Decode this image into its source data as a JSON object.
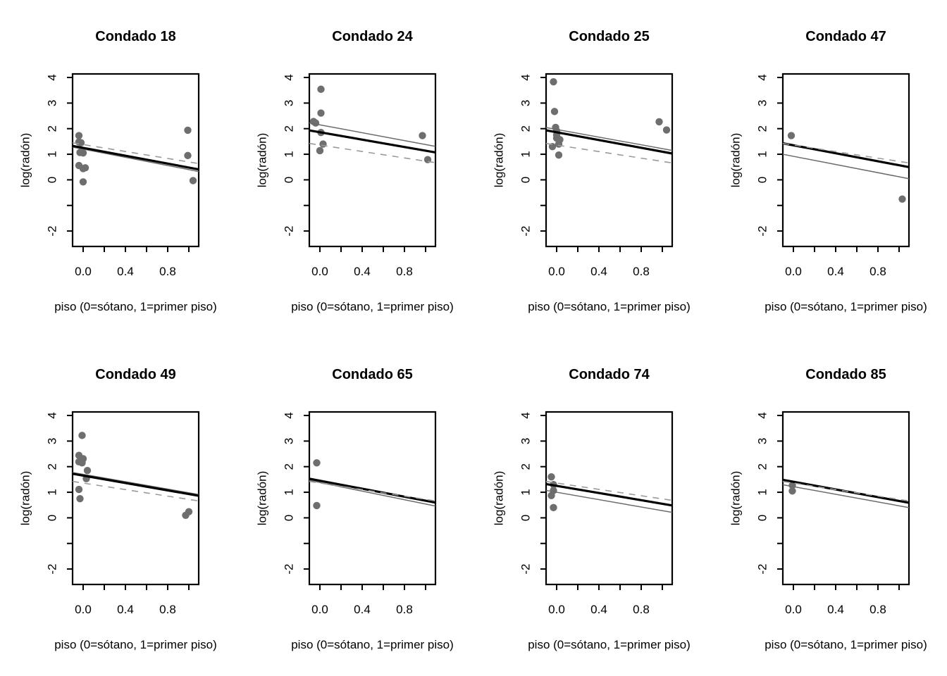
{
  "figure": {
    "background": "#ffffff",
    "point_color": "#6e6e6e",
    "line_colors": {
      "solid_thick_black": "#000000",
      "solid_thin_gray": "#6b6b6b",
      "dashed_gray": "#9a9a9a"
    }
  },
  "axes": {
    "xlabel": "piso (0=sótano, 1=primer piso)",
    "ylabel": "log(radón)",
    "xlim": [
      -0.1,
      1.09
    ],
    "ylim": [
      -2.6,
      4.14
    ],
    "x_ticks": [
      0.0,
      0.2,
      0.4,
      0.6,
      0.8,
      1.0
    ],
    "x_tick_labels": [
      "0.0",
      "",
      "0.4",
      "",
      "0.8",
      ""
    ],
    "y_ticks": [
      4,
      3,
      2,
      1,
      0,
      -1,
      -2
    ],
    "y_tick_labels": [
      "4",
      "3",
      "2",
      "1",
      "0",
      "",
      "-2"
    ],
    "grid": false
  },
  "chart_data": [
    {
      "type": "scatter",
      "title": "Condado 18",
      "xlabel": "piso (0=sótano, 1=primer piso)",
      "ylabel": "log(radón)",
      "points": [
        [
          -0.04,
          1.73
        ],
        [
          -0.04,
          1.48
        ],
        [
          -0.02,
          1.45
        ],
        [
          -0.03,
          1.07
        ],
        [
          0.0,
          1.05
        ],
        [
          -0.04,
          0.56
        ],
        [
          0.02,
          0.47
        ],
        [
          0.0,
          0.44
        ],
        [
          0.0,
          -0.08
        ],
        [
          0.99,
          1.94
        ],
        [
          0.99,
          0.95
        ],
        [
          1.04,
          -0.03
        ]
      ],
      "lines": [
        {
          "style": "solid_thin_gray",
          "y_at_x0": 1.2,
          "y_at_x1": 0.4
        },
        {
          "style": "solid_thick_black",
          "y_at_x0": 1.25,
          "y_at_x1": 0.48
        },
        {
          "style": "dashed_gray",
          "y_at_x0": 1.38,
          "y_at_x1": 0.7
        }
      ]
    },
    {
      "type": "scatter",
      "title": "Condado 24",
      "xlabel": "piso (0=sótano, 1=primer piso)",
      "ylabel": "log(radón)",
      "points": [
        [
          0.01,
          3.54
        ],
        [
          0.01,
          2.61
        ],
        [
          -0.06,
          2.28
        ],
        [
          -0.04,
          2.22
        ],
        [
          0.01,
          1.85
        ],
        [
          0.03,
          1.4
        ],
        [
          0.0,
          1.14
        ],
        [
          0.97,
          1.73
        ],
        [
          1.02,
          0.79
        ]
      ],
      "lines": [
        {
          "style": "solid_thin_gray",
          "y_at_x0": 2.15,
          "y_at_x1": 1.38
        },
        {
          "style": "solid_thick_black",
          "y_at_x0": 1.86,
          "y_at_x1": 1.14
        },
        {
          "style": "dashed_gray",
          "y_at_x0": 1.36,
          "y_at_x1": 0.73
        }
      ]
    },
    {
      "type": "scatter",
      "title": "Condado 25",
      "xlabel": "piso (0=sótano, 1=primer piso)",
      "ylabel": "log(radón)",
      "points": [
        [
          -0.03,
          3.83
        ],
        [
          -0.02,
          2.67
        ],
        [
          -0.01,
          2.05
        ],
        [
          0.0,
          1.91
        ],
        [
          0.0,
          1.75
        ],
        [
          0.0,
          1.63
        ],
        [
          0.03,
          1.57
        ],
        [
          0.02,
          1.4
        ],
        [
          -0.04,
          1.3
        ],
        [
          0.02,
          0.97
        ],
        [
          0.97,
          2.27
        ],
        [
          1.04,
          1.95
        ]
      ],
      "lines": [
        {
          "style": "solid_thin_gray",
          "y_at_x0": 1.97,
          "y_at_x1": 1.22
        },
        {
          "style": "solid_thick_black",
          "y_at_x0": 1.86,
          "y_at_x1": 1.1
        },
        {
          "style": "dashed_gray",
          "y_at_x0": 1.36,
          "y_at_x1": 0.72
        }
      ]
    },
    {
      "type": "scatter",
      "title": "Condado 47",
      "xlabel": "piso (0=sótano, 1=primer piso)",
      "ylabel": "log(radón)",
      "points": [
        [
          -0.02,
          1.73
        ],
        [
          1.03,
          -0.75
        ]
      ],
      "lines": [
        {
          "style": "solid_thin_gray",
          "y_at_x0": 0.92,
          "y_at_x1": 0.12
        },
        {
          "style": "solid_thick_black",
          "y_at_x0": 1.35,
          "y_at_x1": 0.57
        },
        {
          "style": "dashed_gray",
          "y_at_x0": 1.36,
          "y_at_x1": 0.72
        }
      ]
    },
    {
      "type": "scatter",
      "title": "Condado 49",
      "xlabel": "piso (0=sótano, 1=primer piso)",
      "ylabel": "log(radón)",
      "points": [
        [
          -0.01,
          3.22
        ],
        [
          -0.04,
          2.44
        ],
        [
          0.0,
          2.31
        ],
        [
          -0.04,
          2.19
        ],
        [
          -0.01,
          2.15
        ],
        [
          0.04,
          1.85
        ],
        [
          0.03,
          1.53
        ],
        [
          -0.04,
          1.11
        ],
        [
          -0.03,
          0.75
        ],
        [
          0.97,
          0.1
        ],
        [
          1.0,
          0.24
        ]
      ],
      "lines": [
        {
          "style": "solid_thin_gray",
          "y_at_x0": 1.7,
          "y_at_x1": 0.98
        },
        {
          "style": "solid_thick_black",
          "y_at_x0": 1.65,
          "y_at_x1": 0.93
        },
        {
          "style": "dashed_gray",
          "y_at_x0": 1.36,
          "y_at_x1": 0.72
        }
      ]
    },
    {
      "type": "scatter",
      "title": "Condado 65",
      "xlabel": "piso (0=sótano, 1=primer piso)",
      "ylabel": "log(radón)",
      "points": [
        [
          -0.03,
          2.15
        ],
        [
          -0.03,
          0.48
        ]
      ],
      "lines": [
        {
          "style": "solid_thin_gray",
          "y_at_x0": 1.38,
          "y_at_x1": 0.54
        },
        {
          "style": "solid_thick_black",
          "y_at_x0": 1.45,
          "y_at_x1": 0.67
        },
        {
          "style": "dashed_gray",
          "y_at_x0": 1.36,
          "y_at_x1": 0.72
        }
      ]
    },
    {
      "type": "scatter",
      "title": "Condado 74",
      "xlabel": "piso (0=sótano, 1=primer piso)",
      "ylabel": "log(radón)",
      "points": [
        [
          -0.05,
          1.6
        ],
        [
          -0.03,
          1.3
        ],
        [
          -0.03,
          1.07
        ],
        [
          -0.05,
          0.87
        ],
        [
          -0.03,
          0.4
        ]
      ],
      "lines": [
        {
          "style": "solid_thin_gray",
          "y_at_x0": 1.0,
          "y_at_x1": 0.28
        },
        {
          "style": "solid_thick_black",
          "y_at_x0": 1.25,
          "y_at_x1": 0.55
        },
        {
          "style": "dashed_gray",
          "y_at_x0": 1.36,
          "y_at_x1": 0.74
        }
      ]
    },
    {
      "type": "scatter",
      "title": "Condado 85",
      "xlabel": "piso (0=sótano, 1=primer piso)",
      "ylabel": "log(radón)",
      "points": [
        [
          -0.01,
          1.27
        ],
        [
          -0.01,
          1.05
        ]
      ],
      "lines": [
        {
          "style": "solid_thin_gray",
          "y_at_x0": 1.22,
          "y_at_x1": 0.47
        },
        {
          "style": "solid_thick_black",
          "y_at_x0": 1.41,
          "y_at_x1": 0.66
        },
        {
          "style": "dashed_gray",
          "y_at_x0": 1.36,
          "y_at_x1": 0.72
        }
      ]
    }
  ]
}
